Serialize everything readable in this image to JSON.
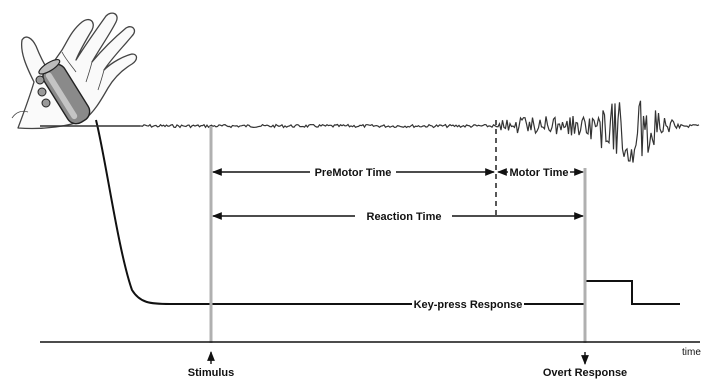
{
  "diagram": {
    "labels": {
      "premotor_time": "PreMotor Time",
      "motor_time": "Motor Time",
      "reaction_time": "Reaction Time",
      "keypress_response": "Key-press Response",
      "stimulus": "Stimulus",
      "overt_response": "Overt Response",
      "time_axis": "time"
    },
    "colors": {
      "ink": "#111111",
      "marker_gray": "#b0b0b0",
      "emg_trace": "#333333",
      "hand_outline": "#444444",
      "device_gray": "#8a8a8a"
    },
    "icons": [
      "hand-icon",
      "keypress-device-icon",
      "up-arrow-icon",
      "down-arrow-icon"
    ]
  }
}
